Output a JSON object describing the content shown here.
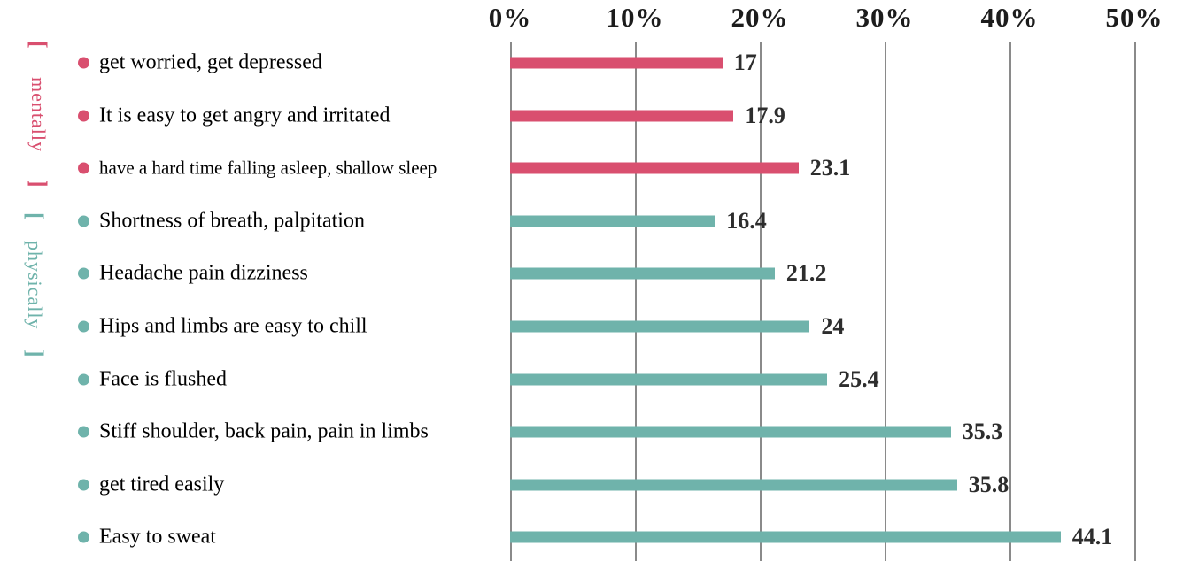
{
  "chart_data": {
    "type": "bar",
    "orientation": "horizontal",
    "title": "",
    "xlabel": "",
    "ylabel": "",
    "xlim": [
      0,
      50
    ],
    "grid": true,
    "legend": false,
    "x_ticks": [
      {
        "value": 0,
        "label": "0%"
      },
      {
        "value": 10,
        "label": "10%"
      },
      {
        "value": 20,
        "label": "20%"
      },
      {
        "value": 30,
        "label": "30%"
      },
      {
        "value": 40,
        "label": "40%"
      },
      {
        "value": 50,
        "label": "50%"
      }
    ],
    "groups": [
      {
        "id": "mentally",
        "label": "mentally",
        "bracket_open": "[",
        "bracket_close": "]",
        "color": "#d94f6f"
      },
      {
        "id": "physically",
        "label": "physically",
        "bracket_open": "[",
        "bracket_close": "]",
        "color": "#6fb3ab"
      }
    ],
    "items": [
      {
        "group": "mentally",
        "label": "get worried, get depressed",
        "value": 17,
        "value_label": "17"
      },
      {
        "group": "mentally",
        "label": "It is easy to get angry and irritated",
        "value": 17.9,
        "value_label": "17.9"
      },
      {
        "group": "mentally",
        "label": "have a hard time falling asleep, shallow sleep",
        "value": 23.1,
        "value_label": "23.1"
      },
      {
        "group": "physically",
        "label": "Shortness of breath, palpitation",
        "value": 16.4,
        "value_label": "16.4"
      },
      {
        "group": "physically",
        "label": "Headache pain dizziness",
        "value": 21.2,
        "value_label": "21.2"
      },
      {
        "group": "physically",
        "label": "Hips and limbs are easy to chill",
        "value": 24,
        "value_label": "24"
      },
      {
        "group": "physically",
        "label": "Face is flushed",
        "value": 25.4,
        "value_label": "25.4"
      },
      {
        "group": "physically",
        "label": "Stiff shoulder, back pain, pain in limbs",
        "value": 35.3,
        "value_label": "35.3"
      },
      {
        "group": "physically",
        "label": "get tired easily",
        "value": 35.8,
        "value_label": "35.8"
      },
      {
        "group": "physically",
        "label": "Easy to sweat",
        "value": 44.1,
        "value_label": "44.1"
      }
    ],
    "colors": {
      "mentally": "#d94f6f",
      "physically": "#6fb3ab",
      "grid": "#8a8a8a",
      "tick_text": "#1c1c1c",
      "value_text": "#2d2d2d",
      "label_text": "#000000"
    }
  }
}
